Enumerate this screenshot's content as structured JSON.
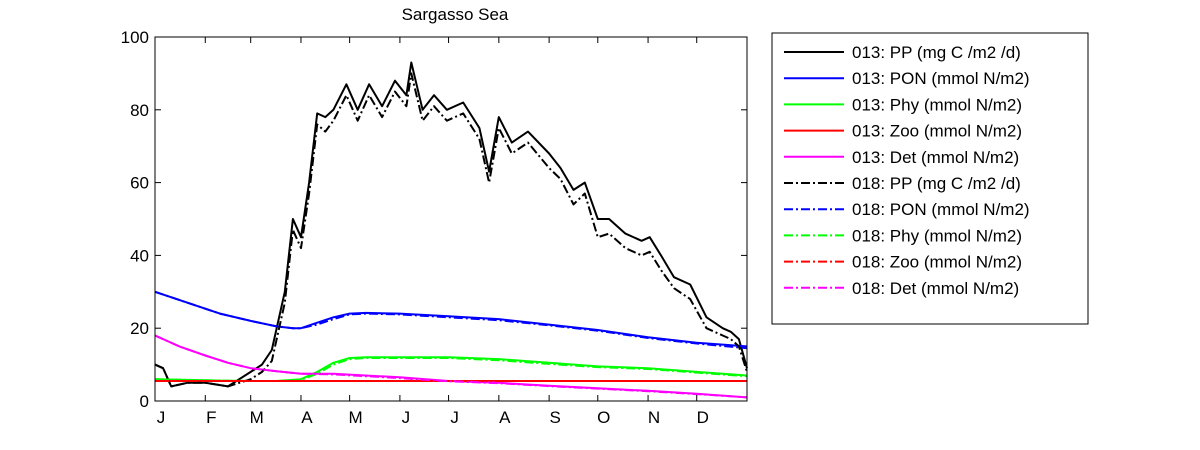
{
  "chart_data": {
    "type": "line",
    "title": "Sargasso Sea",
    "xlabel": "",
    "ylabel": "",
    "xlim": [
      0,
      365
    ],
    "ylim": [
      0,
      100
    ],
    "yticks": [
      0,
      20,
      40,
      60,
      80,
      100
    ],
    "xticks": [
      {
        "label": "J",
        "day": 0
      },
      {
        "label": "F",
        "day": 31
      },
      {
        "label": "M",
        "day": 59
      },
      {
        "label": "A",
        "day": 90
      },
      {
        "label": "M",
        "day": 120
      },
      {
        "label": "J",
        "day": 151
      },
      {
        "label": "J",
        "day": 181
      },
      {
        "label": "A",
        "day": 212
      },
      {
        "label": "S",
        "day": 243
      },
      {
        "label": "O",
        "day": 273
      },
      {
        "label": "N",
        "day": 304
      },
      {
        "label": "D",
        "day": 334
      }
    ],
    "grid": false,
    "legend_position": "outside-right",
    "series": [
      {
        "name": "013: PP (mg C /m2 /d)",
        "color": "#000000",
        "style": "solid",
        "x": [
          0,
          5,
          10,
          20,
          31,
          45,
          59,
          66,
          72,
          80,
          85,
          90,
          95,
          100,
          105,
          110,
          118,
          125,
          132,
          140,
          148,
          155,
          158,
          165,
          172,
          180,
          190,
          200,
          206,
          212,
          220,
          230,
          243,
          250,
          258,
          265,
          273,
          280,
          290,
          300,
          305,
          312,
          320,
          330,
          340,
          350,
          355,
          360,
          365
        ],
        "y": [
          10,
          9,
          4,
          5,
          5,
          4,
          8,
          10,
          14,
          30,
          50,
          45,
          60,
          79,
          78,
          80,
          87,
          80,
          87,
          81,
          88,
          84,
          93,
          80,
          84,
          80,
          82,
          75,
          63,
          78,
          71,
          74,
          68,
          64,
          58,
          60,
          50,
          50,
          46,
          44,
          45,
          40,
          34,
          32,
          23,
          20,
          19,
          17,
          9
        ]
      },
      {
        "name": "013: PON (mmol N/m2)",
        "color": "#0000ff",
        "style": "solid",
        "x": [
          0,
          20,
          40,
          59,
          75,
          85,
          90,
          100,
          110,
          120,
          130,
          151,
          181,
          212,
          243,
          273,
          304,
          334,
          365
        ],
        "y": [
          30,
          27,
          24,
          22,
          20.5,
          20,
          20,
          21.5,
          23,
          24,
          24.2,
          24,
          23.3,
          22.5,
          21,
          19.5,
          17.5,
          16,
          15
        ]
      },
      {
        "name": "013: Phy (mmol N/m2)",
        "color": "#00ff00",
        "style": "solid",
        "x": [
          0,
          20,
          40,
          59,
          75,
          90,
          100,
          110,
          120,
          130,
          151,
          181,
          212,
          243,
          273,
          304,
          334,
          365
        ],
        "y": [
          6,
          5.8,
          5.6,
          5.5,
          5.5,
          6,
          8,
          10.5,
          11.8,
          12,
          12,
          12,
          11.5,
          10.5,
          9.5,
          9,
          8,
          7
        ]
      },
      {
        "name": "013: Zoo (mmol N/m2)",
        "color": "#ff0000",
        "style": "solid",
        "x": [
          0,
          365
        ],
        "y": [
          5.5,
          5.5
        ]
      },
      {
        "name": "013: Det (mmol N/m2)",
        "color": "#ff00ff",
        "style": "solid",
        "x": [
          0,
          15,
          31,
          45,
          59,
          75,
          90,
          110,
          130,
          151,
          181,
          212,
          243,
          273,
          304,
          334,
          365
        ],
        "y": [
          18,
          15,
          12.5,
          10.5,
          9,
          8.2,
          7.5,
          7.5,
          7,
          6.5,
          5.5,
          5,
          4.2,
          3.5,
          2.8,
          2,
          1
        ]
      },
      {
        "name": "018: PP (mg C /m2 /d)",
        "color": "#000000",
        "style": "dashdot",
        "x": [
          0,
          5,
          10,
          20,
          31,
          45,
          59,
          66,
          72,
          80,
          85,
          90,
          95,
          100,
          105,
          110,
          118,
          125,
          132,
          140,
          148,
          155,
          158,
          165,
          172,
          180,
          190,
          200,
          206,
          212,
          220,
          230,
          243,
          250,
          258,
          265,
          273,
          280,
          290,
          300,
          305,
          312,
          320,
          330,
          340,
          350,
          355,
          360,
          365
        ],
        "y": [
          10,
          9,
          4,
          5,
          5,
          4,
          6,
          8,
          11,
          27,
          47,
          42,
          57,
          76,
          74,
          77,
          84,
          77,
          84,
          78,
          85,
          81,
          90,
          77,
          81,
          77,
          79,
          72,
          60,
          75,
          68,
          71,
          64,
          61,
          54,
          57,
          45,
          46,
          42,
          40,
          41,
          36,
          31,
          28,
          20,
          18,
          17,
          15,
          8
        ]
      },
      {
        "name": "018: PON (mmol N/m2)",
        "color": "#0000ff",
        "style": "dashdot",
        "x": [
          0,
          20,
          40,
          59,
          75,
          85,
          90,
          100,
          110,
          120,
          130,
          151,
          181,
          212,
          243,
          273,
          304,
          334,
          365
        ],
        "y": [
          30,
          27,
          24,
          22,
          20.5,
          20,
          20,
          21,
          22.5,
          23.8,
          24,
          23.8,
          23,
          22.2,
          20.8,
          19.3,
          17.3,
          15.8,
          14.5
        ]
      },
      {
        "name": "018: Phy (mmol N/m2)",
        "color": "#00ff00",
        "style": "dashdot",
        "x": [
          0,
          20,
          40,
          59,
          75,
          90,
          100,
          110,
          120,
          130,
          151,
          181,
          212,
          243,
          273,
          304,
          334,
          365
        ],
        "y": [
          6,
          5.8,
          5.6,
          5.5,
          5.5,
          5.8,
          7.5,
          10,
          11.5,
          11.8,
          11.8,
          11.8,
          11.2,
          10.2,
          9.3,
          8.8,
          7.8,
          6.8
        ]
      },
      {
        "name": "018: Zoo (mmol N/m2)",
        "color": "#ff0000",
        "style": "dashdot",
        "x": [
          0,
          365
        ],
        "y": [
          5.5,
          5.5
        ]
      },
      {
        "name": "018: Det (mmol N/m2)",
        "color": "#ff00ff",
        "style": "dashdot",
        "x": [
          0,
          15,
          31,
          45,
          59,
          75,
          90,
          110,
          130,
          151,
          181,
          212,
          243,
          273,
          304,
          334,
          365
        ],
        "y": [
          18,
          15,
          12.5,
          10.5,
          9,
          8.2,
          7.5,
          7.3,
          6.8,
          6.3,
          5.4,
          4.9,
          4.1,
          3.4,
          2.7,
          1.9,
          1
        ]
      }
    ]
  }
}
